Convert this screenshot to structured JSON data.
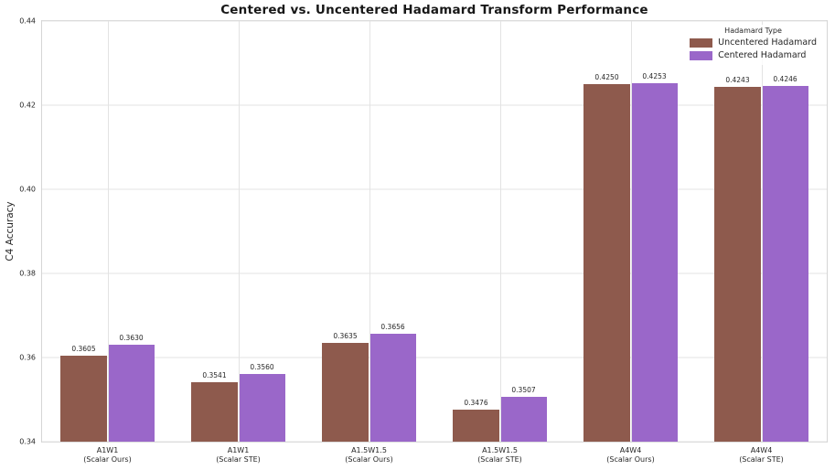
{
  "chart_data": {
    "type": "bar",
    "title": "Centered vs. Uncentered Hadamard Transform Performance",
    "ylabel": "C4 Accuracy",
    "ylim": [
      0.34,
      0.44
    ],
    "yticks": [
      "0.34",
      "0.36",
      "0.38",
      "0.40",
      "0.42",
      "0.44"
    ],
    "grid": true,
    "legend_title": "Hadamard Type",
    "legend_position": "upper right",
    "value_label_decimals": 4,
    "categories": [
      {
        "model": "A1W1",
        "method": "(Scalar Ours)"
      },
      {
        "model": "A1W1",
        "method": "(Scalar STE)"
      },
      {
        "model": "A1.5W1.5",
        "method": "(Scalar Ours)"
      },
      {
        "model": "A1.5W1.5",
        "method": "(Scalar STE)"
      },
      {
        "model": "A4W4",
        "method": "(Scalar Ours)"
      },
      {
        "model": "A4W4",
        "method": "(Scalar STE)"
      }
    ],
    "series": [
      {
        "name": "Uncentered Hadamard",
        "color": "#8e5a4d",
        "values": [
          0.3605,
          0.3541,
          0.3635,
          0.3476,
          0.425,
          0.4243
        ]
      },
      {
        "name": "Centered Hadamard",
        "color": "#9a67c9",
        "values": [
          0.363,
          0.356,
          0.3656,
          0.3507,
          0.4253,
          0.4246
        ]
      }
    ]
  }
}
